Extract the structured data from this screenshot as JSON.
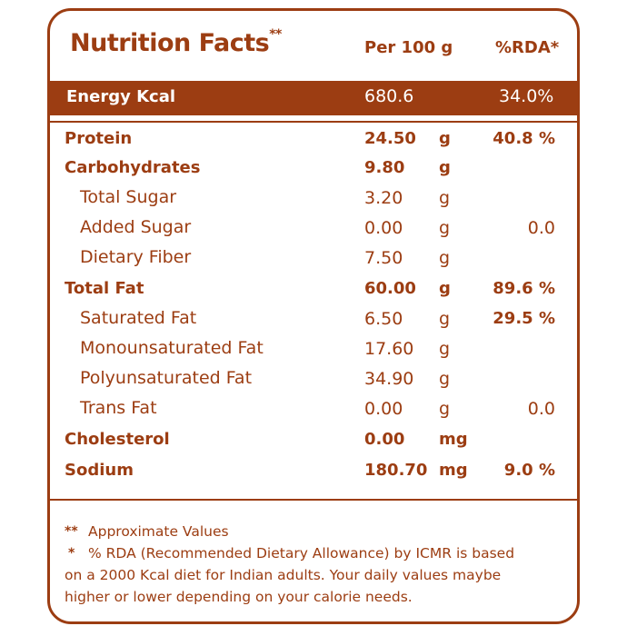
{
  "header": {
    "title": "Nutrition Facts",
    "title_mark": "**",
    "per_label": "Per 100 g",
    "rda_label": "%RDA*"
  },
  "energy": {
    "label": "Energy Kcal",
    "value": "680.6",
    "rda": "34.0%"
  },
  "rows": [
    {
      "name": "Protein",
      "value": "24.50",
      "unit": "g",
      "rda": "40.8 %",
      "style": "bold"
    },
    {
      "name": "Carbohydrates",
      "value": "9.80",
      "unit": "g",
      "rda": "",
      "style": "bold"
    },
    {
      "name": "Total Sugar",
      "value": "3.20",
      "unit": "g",
      "rda": "",
      "style": "sub"
    },
    {
      "name": "Added Sugar",
      "value": "0.00",
      "unit": "g",
      "rda": "0.0",
      "style": "sub"
    },
    {
      "name": "Dietary Fiber",
      "value": "7.50",
      "unit": "g",
      "rda": "",
      "style": "sub"
    },
    {
      "name": "Total Fat",
      "value": "60.00",
      "unit": "g",
      "rda": "89.6 %",
      "style": "bold"
    },
    {
      "name": "Saturated Fat",
      "value": "6.50",
      "unit": "g",
      "rda": "29.5 %",
      "style": "sub"
    },
    {
      "name": "Monounsaturated Fat",
      "value": "17.60",
      "unit": "g",
      "rda": "",
      "style": "sub"
    },
    {
      "name": "Polyunsaturated Fat",
      "value": "34.90",
      "unit": "g",
      "rda": "",
      "style": "sub"
    },
    {
      "name": "Trans Fat",
      "value": "0.00",
      "unit": "g",
      "rda": "0.0",
      "style": "sub"
    },
    {
      "name": "Cholesterol",
      "value": "0.00",
      "unit": "mg",
      "rda": "",
      "style": "bold"
    },
    {
      "name": "Sodium",
      "value": "180.70",
      "unit": "mg",
      "rda": "9.0 %",
      "style": "bold"
    }
  ],
  "footnotes": {
    "approx_mark": "**",
    "approx_text": "Approximate Values",
    "rda_mark": "*",
    "rda_line1": "% RDA (Recommended Dietary Allowance) by ICMR is based",
    "rda_line2": "on a 2000 Kcal diet for Indian adults. Your daily values maybe",
    "rda_line3": "higher or lower depending on your calorie needs."
  },
  "colors": {
    "brand": "#9c3d12",
    "background": "#ffffff"
  }
}
